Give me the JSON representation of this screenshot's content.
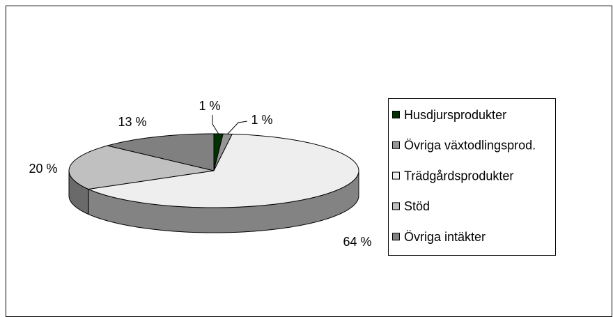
{
  "chart_data": {
    "type": "pie",
    "categories": [
      "Husdjursprodukter",
      "Övriga växtodlingsprod.",
      "Trädgårdsprodukter",
      "Stöd",
      "Övriga intäkter"
    ],
    "values": [
      1,
      1,
      64,
      20,
      13
    ],
    "value_labels": [
      "1 %",
      "1 %",
      "64 %",
      "20 %",
      "13 %"
    ],
    "colors": [
      "#003300",
      "#969696",
      "#eeeeee",
      "#c0c0c0",
      "#808080"
    ],
    "legend": "right"
  }
}
